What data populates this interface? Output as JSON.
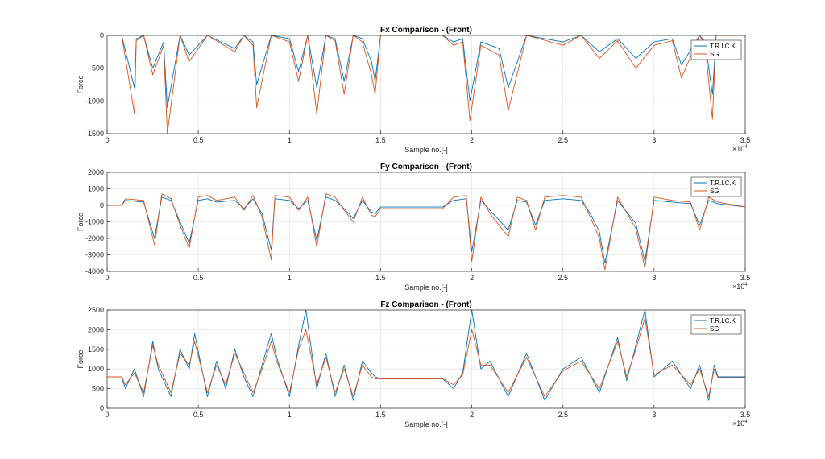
{
  "chart_data": [
    {
      "type": "line",
      "title": "Fx Comparison -  (Front)",
      "xlabel": "Sample no.[-]",
      "ylabel": "Force",
      "xlim": [
        0,
        3.5
      ],
      "ylim": [
        -1500,
        0
      ],
      "x_ticks": [
        0,
        0.5,
        1,
        1.5,
        2,
        2.5,
        3,
        3.5
      ],
      "x_tick_labels": [
        "0",
        "0.5",
        "1",
        "1.5",
        "2",
        "2.5",
        "3",
        "3.5"
      ],
      "y_ticks": [
        -1500,
        -1000,
        -500,
        0
      ],
      "y_tick_labels": [
        "-1500",
        "-1000",
        "-500",
        "0"
      ],
      "x_exponent_label": "×10",
      "x_exponent_power": "4",
      "grid": true,
      "legend": "top-right",
      "series": [
        {
          "name": "T.R.I.C.K",
          "color": "#0072BD",
          "x": [
            0,
            0.08,
            0.15,
            0.16,
            0.2,
            0.25,
            0.31,
            0.33,
            0.4,
            0.45,
            0.55,
            0.7,
            0.75,
            0.8,
            0.82,
            0.9,
            1.0,
            1.05,
            1.1,
            1.15,
            1.2,
            1.25,
            1.3,
            1.35,
            1.4,
            1.45,
            1.47,
            1.5,
            1.84,
            1.9,
            1.95,
            1.99,
            2.05,
            2.15,
            2.2,
            2.3,
            2.5,
            2.6,
            2.7,
            2.8,
            2.9,
            3.0,
            3.1,
            3.15,
            3.25,
            3.28,
            3.32,
            3.34,
            3.5
          ],
          "y": [
            0,
            0,
            -800,
            -50,
            0,
            -500,
            -100,
            -1100,
            0,
            -300,
            0,
            -200,
            0,
            -100,
            -750,
            0,
            -50,
            -550,
            0,
            -800,
            0,
            -50,
            -700,
            0,
            -50,
            -400,
            -700,
            0,
            0,
            -100,
            -50,
            -1000,
            -100,
            -200,
            -800,
            0,
            -100,
            0,
            -250,
            -50,
            -350,
            -100,
            -50,
            -450,
            0,
            -100,
            -900,
            0,
            0
          ]
        },
        {
          "name": "SG",
          "color": "#D95319",
          "x": [
            0,
            0.08,
            0.15,
            0.16,
            0.2,
            0.25,
            0.31,
            0.33,
            0.4,
            0.45,
            0.55,
            0.7,
            0.75,
            0.8,
            0.82,
            0.9,
            1.0,
            1.05,
            1.1,
            1.15,
            1.2,
            1.25,
            1.3,
            1.35,
            1.4,
            1.45,
            1.47,
            1.5,
            1.84,
            1.9,
            1.95,
            1.99,
            2.05,
            2.15,
            2.2,
            2.3,
            2.5,
            2.6,
            2.7,
            2.8,
            2.9,
            3.0,
            3.1,
            3.15,
            3.25,
            3.28,
            3.32,
            3.34,
            3.5
          ],
          "y": [
            0,
            0,
            -1200,
            -80,
            0,
            -600,
            -150,
            -1500,
            0,
            -400,
            0,
            -250,
            0,
            -150,
            -1100,
            0,
            -100,
            -700,
            0,
            -1200,
            0,
            -80,
            -900,
            0,
            -100,
            -600,
            -900,
            0,
            0,
            -150,
            -100,
            -1300,
            -150,
            -300,
            -1150,
            0,
            -150,
            0,
            -350,
            -80,
            -500,
            -150,
            -80,
            -650,
            0,
            -150,
            -1280,
            0,
            0
          ]
        }
      ]
    },
    {
      "type": "line",
      "title": "Fy Comparison -  (Front)",
      "xlabel": "Sample no.[-]",
      "ylabel": "Force",
      "xlim": [
        0,
        3.5
      ],
      "ylim": [
        -4000,
        2000
      ],
      "x_ticks": [
        0,
        0.5,
        1,
        1.5,
        2,
        2.5,
        3,
        3.5
      ],
      "x_tick_labels": [
        "0",
        "0.5",
        "1",
        "1.5",
        "2",
        "2.5",
        "3",
        "3.5"
      ],
      "y_ticks": [
        -4000,
        -3000,
        -2000,
        -1000,
        0,
        1000,
        2000
      ],
      "y_tick_labels": [
        "-4000",
        "-3000",
        "-2000",
        "-1000",
        "0",
        "1000",
        "2000"
      ],
      "x_exponent_label": "×10",
      "x_exponent_power": "4",
      "grid": true,
      "legend": "top-right",
      "series": [
        {
          "name": "T.R.I.C.K",
          "color": "#0072BD",
          "x": [
            0,
            0.08,
            0.1,
            0.2,
            0.26,
            0.3,
            0.35,
            0.4,
            0.45,
            0.5,
            0.55,
            0.6,
            0.7,
            0.75,
            0.8,
            0.85,
            0.9,
            0.92,
            1.0,
            1.05,
            1.1,
            1.15,
            1.2,
            1.25,
            1.3,
            1.35,
            1.4,
            1.45,
            1.47,
            1.5,
            1.84,
            1.9,
            1.97,
            2.0,
            2.05,
            2.1,
            2.2,
            2.25,
            2.3,
            2.35,
            2.4,
            2.5,
            2.6,
            2.65,
            2.7,
            2.73,
            2.8,
            2.9,
            2.95,
            3.0,
            3.1,
            3.2,
            3.25,
            3.3,
            3.35,
            3.5
          ],
          "y": [
            0,
            0,
            300,
            200,
            -2000,
            500,
            300,
            -1000,
            -2300,
            300,
            400,
            200,
            300,
            -200,
            400,
            -500,
            -2700,
            400,
            300,
            -200,
            300,
            -2100,
            500,
            300,
            -200,
            -800,
            300,
            -400,
            -500,
            -100,
            -100,
            300,
            400,
            -2800,
            300,
            -300,
            -1500,
            300,
            200,
            -1200,
            300,
            400,
            300,
            -500,
            -1600,
            -3500,
            300,
            -1100,
            -3400,
            300,
            200,
            100,
            -1200,
            300,
            100,
            -100
          ]
        },
        {
          "name": "SG",
          "color": "#D95319",
          "x": [
            0,
            0.08,
            0.1,
            0.2,
            0.26,
            0.3,
            0.35,
            0.4,
            0.45,
            0.5,
            0.55,
            0.6,
            0.7,
            0.75,
            0.8,
            0.85,
            0.9,
            0.92,
            1.0,
            1.05,
            1.1,
            1.15,
            1.2,
            1.25,
            1.3,
            1.35,
            1.4,
            1.45,
            1.47,
            1.5,
            1.84,
            1.9,
            1.97,
            2.0,
            2.05,
            2.1,
            2.2,
            2.25,
            2.3,
            2.35,
            2.4,
            2.5,
            2.6,
            2.65,
            2.7,
            2.73,
            2.8,
            2.9,
            2.95,
            3.0,
            3.1,
            3.2,
            3.25,
            3.3,
            3.35,
            3.5
          ],
          "y": [
            0,
            0,
            400,
            300,
            -2400,
            700,
            400,
            -1200,
            -2600,
            500,
            600,
            300,
            500,
            -300,
            600,
            -700,
            -3300,
            600,
            500,
            -300,
            500,
            -2500,
            700,
            500,
            -300,
            -1000,
            500,
            -600,
            -700,
            -200,
            -200,
            500,
            600,
            -3400,
            500,
            -500,
            -1900,
            500,
            300,
            -1500,
            500,
            600,
            500,
            -700,
            -2000,
            -3900,
            500,
            -1400,
            -3800,
            500,
            300,
            200,
            -1500,
            500,
            200,
            -100
          ]
        }
      ]
    },
    {
      "type": "line",
      "title": "Fz Comparison -  (Front)",
      "xlabel": "Sample no.[-]",
      "ylabel": "Force",
      "xlim": [
        0,
        3.5
      ],
      "ylim": [
        0,
        2500
      ],
      "x_ticks": [
        0,
        0.5,
        1,
        1.5,
        2,
        2.5,
        3,
        3.5
      ],
      "x_tick_labels": [
        "0",
        "0.5",
        "1",
        "1.5",
        "2",
        "2.5",
        "3",
        "3.5"
      ],
      "y_ticks": [
        0,
        500,
        1000,
        1500,
        2000,
        2500
      ],
      "y_tick_labels": [
        "0",
        "500",
        "1000",
        "1500",
        "2000",
        "2500"
      ],
      "x_exponent_label": "×10",
      "x_exponent_power": "4",
      "grid": true,
      "legend": "top-right",
      "series": [
        {
          "name": "T.R.I.C.K",
          "color": "#0072BD",
          "x": [
            0,
            0.08,
            0.1,
            0.15,
            0.2,
            0.25,
            0.28,
            0.35,
            0.4,
            0.45,
            0.48,
            0.55,
            0.6,
            0.65,
            0.7,
            0.75,
            0.8,
            0.85,
            0.9,
            0.93,
            1.0,
            1.05,
            1.09,
            1.15,
            1.2,
            1.25,
            1.3,
            1.35,
            1.4,
            1.45,
            1.47,
            1.5,
            1.84,
            1.9,
            1.95,
            2.0,
            2.05,
            2.1,
            2.2,
            2.3,
            2.4,
            2.5,
            2.6,
            2.7,
            2.8,
            2.85,
            2.9,
            2.95,
            3.0,
            3.1,
            3.2,
            3.25,
            3.3,
            3.33,
            3.35,
            3.5
          ],
          "y": [
            800,
            800,
            500,
            1000,
            300,
            1700,
            1000,
            300,
            1500,
            1000,
            1900,
            300,
            1200,
            500,
            1500,
            800,
            300,
            1100,
            1900,
            1300,
            300,
            1600,
            2500,
            500,
            1400,
            300,
            1100,
            200,
            1200,
            900,
            800,
            750,
            750,
            500,
            900,
            2500,
            1000,
            1200,
            300,
            1400,
            200,
            1000,
            1300,
            400,
            1800,
            700,
            1600,
            2500,
            800,
            1200,
            500,
            1100,
            200,
            1100,
            800,
            800
          ]
        },
        {
          "name": "SG",
          "color": "#D95319",
          "x": [
            0,
            0.08,
            0.1,
            0.15,
            0.2,
            0.25,
            0.28,
            0.35,
            0.4,
            0.45,
            0.48,
            0.55,
            0.6,
            0.65,
            0.7,
            0.75,
            0.8,
            0.85,
            0.9,
            0.93,
            1.0,
            1.05,
            1.09,
            1.15,
            1.2,
            1.25,
            1.3,
            1.35,
            1.4,
            1.45,
            1.47,
            1.5,
            1.84,
            1.9,
            1.95,
            2.0,
            2.05,
            2.1,
            2.2,
            2.3,
            2.4,
            2.5,
            2.6,
            2.7,
            2.8,
            2.85,
            2.9,
            2.95,
            3.0,
            3.1,
            3.2,
            3.25,
            3.3,
            3.33,
            3.35,
            3.5
          ],
          "y": [
            800,
            800,
            600,
            900,
            400,
            1600,
            1100,
            400,
            1400,
            1100,
            1700,
            400,
            1100,
            600,
            1400,
            900,
            400,
            1000,
            1700,
            1200,
            400,
            1500,
            2000,
            600,
            1300,
            400,
            1000,
            300,
            1100,
            800,
            750,
            750,
            750,
            600,
            850,
            2000,
            1100,
            1100,
            400,
            1300,
            300,
            950,
            1200,
            500,
            1700,
            800,
            1500,
            2300,
            850,
            1100,
            600,
            1000,
            300,
            1000,
            780,
            780
          ]
        }
      ]
    }
  ]
}
